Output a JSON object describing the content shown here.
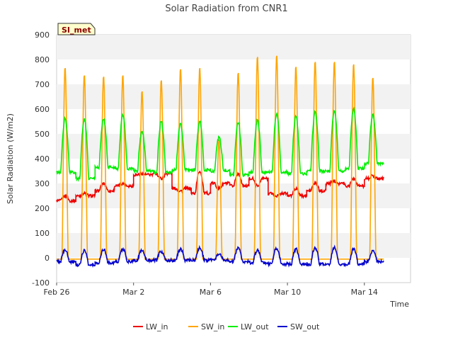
{
  "chart_data": {
    "type": "line",
    "title": "Solar Radiation from CNR1",
    "xlabel": "Time",
    "ylabel": "Solar Radiation (W/m2)",
    "ylim": [
      -100,
      900
    ],
    "yticks": [
      -100,
      0,
      100,
      200,
      300,
      400,
      500,
      600,
      700,
      800,
      900
    ],
    "xlim": [
      0,
      18.4
    ],
    "xticks": [
      {
        "value": 0,
        "label": "Feb 26"
      },
      {
        "value": 4,
        "label": "Mar 2"
      },
      {
        "value": 8,
        "label": "Mar 6"
      },
      {
        "value": 12,
        "label": "Mar 10"
      },
      {
        "value": 16,
        "label": "Mar 14"
      }
    ],
    "badge": "SI_met",
    "grid": "horizontal bands",
    "legend_position": "bottom",
    "days": [
      0,
      1,
      2,
      3,
      4,
      5,
      6,
      7,
      8,
      9,
      10,
      11,
      12,
      13,
      14,
      15,
      16
    ],
    "series": [
      {
        "name": "LW_in",
        "color": "#ee0000",
        "night": [
          230,
          250,
          270,
          290,
          335,
          340,
          280,
          260,
          300,
          290,
          320,
          260,
          250,
          270,
          300,
          290,
          320
        ],
        "peak": [
          250,
          260,
          300,
          300,
          340,
          320,
          270,
          350,
          280,
          340,
          290,
          250,
          280,
          300,
          310,
          320,
          330
        ]
      },
      {
        "name": "SW_in",
        "color": "#ffa500",
        "night": [
          -5,
          -5,
          -5,
          -5,
          -5,
          -5,
          -5,
          -5,
          -5,
          -5,
          -5,
          -5,
          -5,
          -5,
          -5,
          -5,
          -5
        ],
        "peak": [
          770,
          740,
          735,
          740,
          675,
          720,
          765,
          770,
          475,
          750,
          815,
          820,
          775,
          795,
          795,
          785,
          730
        ]
      },
      {
        "name": "LW_out",
        "color": "#00ee00",
        "night": [
          345,
          320,
          365,
          360,
          350,
          345,
          355,
          355,
          350,
          335,
          345,
          345,
          340,
          350,
          350,
          360,
          380
        ],
        "peak": [
          560,
          560,
          560,
          575,
          510,
          550,
          540,
          550,
          485,
          545,
          555,
          580,
          570,
          590,
          595,
          600,
          575
        ]
      },
      {
        "name": "SW_out",
        "color": "#0000cc",
        "night": [
          -15,
          -30,
          -20,
          -15,
          -10,
          -10,
          -10,
          -10,
          -10,
          -15,
          -20,
          -25,
          -25,
          -25,
          -25,
          -25,
          -15
        ],
        "peak": [
          30,
          30,
          35,
          35,
          30,
          25,
          35,
          40,
          15,
          40,
          30,
          40,
          35,
          40,
          40,
          35,
          30
        ]
      }
    ]
  }
}
